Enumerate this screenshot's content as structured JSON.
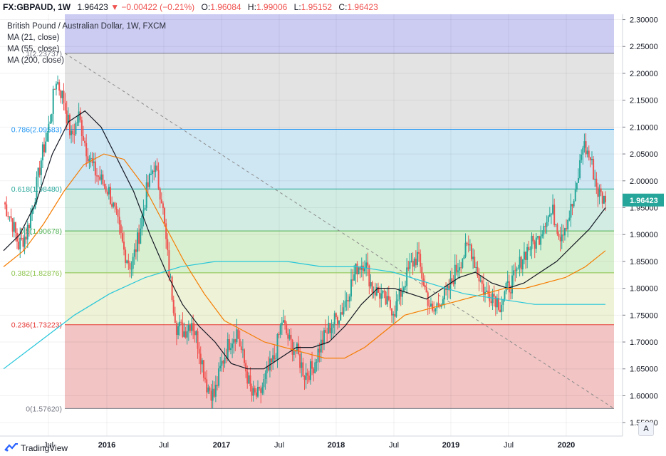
{
  "header": {
    "symbol": "FX:GBPAUD, 1W",
    "last": "1.96423",
    "change": "−0.00422 (−0.21%)",
    "open_label": "O:",
    "open": "1.96084",
    "high_label": "H:",
    "high": "1.99006",
    "low_label": "L:",
    "low": "1.95152",
    "close_label": "C:",
    "close": "1.96423"
  },
  "legend": {
    "title": "British Pound / Australian Dollar, 1W, FXCM",
    "ma21": "MA (21, close)",
    "ma55": "MA (55, close)",
    "ma200": "MA (200, close)"
  },
  "footer": {
    "brand": "TradingView"
  },
  "axis_button": "A",
  "chart_data": {
    "type": "candlestick",
    "symbol": "GBPAUD",
    "timeframe": "1W",
    "ylim": [
      1.525,
      2.31
    ],
    "y_ticks": [
      "2.30000",
      "2.25000",
      "2.20000",
      "2.15000",
      "2.10000",
      "2.05000",
      "2.00000",
      "1.95000",
      "1.90000",
      "1.85000",
      "1.80000",
      "1.75000",
      "1.70000",
      "1.65000",
      "1.60000",
      "1.55000"
    ],
    "x_ticks": [
      "Jul",
      "2016",
      "Jul",
      "2017",
      "Jul",
      "2018",
      "Jul",
      "2019",
      "Jul",
      "2020"
    ],
    "last_price_label": "1.96423",
    "fib_levels": [
      {
        "label": "0(1.57620)",
        "value": 1.5762,
        "color": "#787b86",
        "fill": "#f2c4c4"
      },
      {
        "label": "0.236(1.73223)",
        "value": 1.73223,
        "color": "#e53935",
        "fill": "#eef2d6"
      },
      {
        "label": "0.382(1.82876)",
        "value": 1.82876,
        "color": "#8bc34a",
        "fill": "#d9f0d0"
      },
      {
        "label": "0.5(1.90678)",
        "value": 1.90678,
        "color": "#4caf50",
        "fill": "#d2ece4"
      },
      {
        "label": "0.618(1.98480)",
        "value": 1.9848,
        "color": "#26a69a",
        "fill": "#cfe6f3"
      },
      {
        "label": "0.786(2.09583)",
        "value": 2.09583,
        "color": "#2196f3",
        "fill": "#e3e3e3"
      },
      {
        "label": "1(2.23737)",
        "value": 2.23737,
        "color": "#787b86",
        "fill": "#ccccf3"
      }
    ],
    "trend_line": {
      "from": 2.23737,
      "to": 1.5762,
      "style": "dashed"
    },
    "price_path": [
      1.96,
      1.93,
      1.88,
      1.9,
      1.96,
      2.04,
      2.1,
      2.19,
      2.15,
      2.08,
      2.12,
      2.06,
      2.02,
      2.0,
      1.98,
      1.93,
      1.87,
      1.84,
      1.9,
      1.98,
      2.03,
      1.97,
      1.83,
      1.73,
      1.72,
      1.74,
      1.69,
      1.62,
      1.6,
      1.66,
      1.7,
      1.72,
      1.66,
      1.6,
      1.6,
      1.64,
      1.67,
      1.74,
      1.7,
      1.68,
      1.64,
      1.65,
      1.69,
      1.72,
      1.74,
      1.76,
      1.8,
      1.84,
      1.85,
      1.8,
      1.79,
      1.77,
      1.76,
      1.8,
      1.84,
      1.86,
      1.8,
      1.75,
      1.78,
      1.79,
      1.83,
      1.86,
      1.88,
      1.83,
      1.79,
      1.79,
      1.77,
      1.8,
      1.82,
      1.86,
      1.88,
      1.89,
      1.93,
      1.94,
      1.9,
      1.93,
      1.97,
      2.07,
      2.04,
      1.98,
      1.96
    ],
    "series": [
      {
        "name": "MA (21, close)",
        "color": "#131722",
        "values": [
          1.87,
          1.9,
          1.96,
          2.05,
          2.11,
          2.13,
          2.1,
          2.04,
          1.98,
          1.9,
          1.83,
          1.77,
          1.73,
          1.7,
          1.66,
          1.65,
          1.65,
          1.67,
          1.69,
          1.69,
          1.7,
          1.73,
          1.77,
          1.8,
          1.8,
          1.79,
          1.78,
          1.8,
          1.82,
          1.83,
          1.81,
          1.8,
          1.81,
          1.83,
          1.85,
          1.88,
          1.91,
          1.95
        ]
      },
      {
        "name": "MA (55, close)",
        "color": "#f57c00",
        "values": [
          1.84,
          1.87,
          1.92,
          1.98,
          2.03,
          2.05,
          2.04,
          1.99,
          1.92,
          1.85,
          1.79,
          1.74,
          1.72,
          1.7,
          1.69,
          1.68,
          1.67,
          1.67,
          1.69,
          1.72,
          1.75,
          1.76,
          1.77,
          1.78,
          1.79,
          1.8,
          1.8,
          1.81,
          1.82,
          1.84,
          1.87
        ]
      },
      {
        "name": "MA (200, close)",
        "color": "#26c6da",
        "values": [
          1.65,
          1.7,
          1.75,
          1.79,
          1.82,
          1.84,
          1.85,
          1.85,
          1.85,
          1.84,
          1.84,
          1.83,
          1.81,
          1.79,
          1.78,
          1.77,
          1.77,
          1.77
        ]
      }
    ]
  }
}
